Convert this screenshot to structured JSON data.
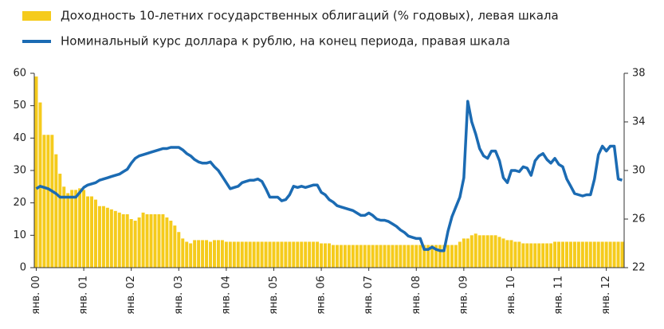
{
  "chart_data": {
    "type": "bar-line",
    "categories": [
      "янв. 00",
      null,
      null,
      null,
      null,
      null,
      null,
      null,
      null,
      null,
      null,
      null,
      "янв. 01",
      null,
      null,
      null,
      null,
      null,
      null,
      null,
      null,
      null,
      null,
      null,
      "янв. 02",
      null,
      null,
      null,
      null,
      null,
      null,
      null,
      null,
      null,
      null,
      null,
      "янв. 03",
      null,
      null,
      null,
      null,
      null,
      null,
      null,
      null,
      null,
      null,
      null,
      "янв. 04",
      null,
      null,
      null,
      null,
      null,
      null,
      null,
      null,
      null,
      null,
      null,
      "янв. 05",
      null,
      null,
      null,
      null,
      null,
      null,
      null,
      null,
      null,
      null,
      null,
      "янв. 06",
      null,
      null,
      null,
      null,
      null,
      null,
      null,
      null,
      null,
      null,
      null,
      "янв. 07",
      null,
      null,
      null,
      null,
      null,
      null,
      null,
      null,
      null,
      null,
      null,
      "янв. 08",
      null,
      null,
      null,
      null,
      null,
      null,
      null,
      null,
      null,
      null,
      null,
      "янв. 09",
      null,
      null,
      null,
      null,
      null,
      null,
      null,
      null,
      null,
      null,
      null,
      "янв. 10",
      null,
      null,
      null,
      null,
      null,
      null,
      null,
      null,
      null,
      null,
      null,
      "янв. 11",
      null,
      null,
      null,
      null,
      null,
      null,
      null,
      null,
      null,
      null,
      null,
      "янв. 12",
      null,
      null,
      null,
      null
    ],
    "series": [
      {
        "name": "Доходность 10-летних государственных облигаций (% годовых), левая шкала",
        "color": "#f5cb1c",
        "type": "bar",
        "axis": "y",
        "values": [
          59,
          51,
          41,
          41,
          41,
          35,
          29,
          25,
          23,
          24,
          24,
          24.5,
          24,
          22,
          22,
          21,
          19,
          19,
          18.5,
          18,
          17.5,
          17,
          16.5,
          16.5,
          15,
          14.5,
          15.5,
          17,
          16.5,
          16.5,
          16.5,
          16.5,
          16.5,
          15.5,
          14.5,
          13,
          11,
          9,
          8,
          7.5,
          8.5,
          8.5,
          8.5,
          8.5,
          8,
          8.5,
          8.5,
          8.5,
          8,
          8,
          8,
          8,
          8,
          8,
          8,
          8,
          8,
          8,
          8,
          8,
          8,
          8,
          8,
          8,
          8,
          8,
          8,
          8,
          8,
          8,
          8,
          8,
          7.5,
          7.5,
          7.5,
          7,
          7,
          7,
          7,
          7,
          7,
          7,
          7,
          7,
          7,
          7,
          7,
          7,
          7,
          7,
          7,
          7,
          7,
          7,
          7,
          7,
          7,
          7,
          7,
          7,
          7,
          7,
          7,
          7,
          7,
          7,
          7,
          8,
          9,
          9,
          10,
          10.5,
          10,
          10,
          10,
          10,
          10,
          9.5,
          9,
          8.5,
          8.5,
          8,
          8,
          7.5,
          7.5,
          7.5,
          7.5,
          7.5,
          7.5,
          7.5,
          7.5,
          8,
          8,
          8,
          8,
          8,
          8,
          8,
          8,
          8,
          8,
          8,
          8,
          8,
          8,
          8,
          8,
          8,
          8
        ]
      },
      {
        "name": "Номинальный курс доллара к рублю, на конец периода, правая шкала",
        "color": "#1b6bb3",
        "type": "line",
        "axis": "y2",
        "values": [
          28.5,
          28.7,
          28.6,
          28.5,
          28.3,
          28.1,
          27.8,
          27.8,
          27.8,
          27.8,
          27.8,
          28.2,
          28.6,
          28.8,
          28.9,
          29.0,
          29.2,
          29.3,
          29.4,
          29.5,
          29.6,
          29.7,
          29.9,
          30.1,
          30.6,
          31.0,
          31.2,
          31.3,
          31.4,
          31.5,
          31.6,
          31.7,
          31.8,
          31.8,
          31.9,
          31.9,
          31.9,
          31.7,
          31.4,
          31.2,
          30.9,
          30.7,
          30.6,
          30.6,
          30.7,
          30.3,
          30.0,
          29.5,
          29.0,
          28.5,
          28.6,
          28.7,
          29.0,
          29.1,
          29.2,
          29.2,
          29.3,
          29.1,
          28.5,
          27.8,
          27.8,
          27.8,
          27.5,
          27.6,
          28.0,
          28.7,
          28.6,
          28.7,
          28.6,
          28.7,
          28.8,
          28.8,
          28.2,
          28.0,
          27.6,
          27.4,
          27.1,
          27.0,
          26.9,
          26.8,
          26.7,
          26.5,
          26.3,
          26.3,
          26.5,
          26.3,
          26.0,
          25.9,
          25.9,
          25.8,
          25.6,
          25.4,
          25.1,
          24.9,
          24.6,
          24.5,
          24.4,
          24.4,
          23.5,
          23.5,
          23.7,
          23.5,
          23.4,
          23.4,
          25.0,
          26.2,
          27.0,
          27.8,
          29.4,
          35.7,
          34.0,
          33.0,
          31.8,
          31.2,
          31.0,
          31.6,
          31.6,
          30.8,
          29.4,
          29.0,
          30.0,
          30.0,
          29.9,
          30.3,
          30.2,
          29.6,
          30.8,
          31.2,
          31.4,
          30.9,
          30.6,
          31.0,
          30.5,
          30.3,
          29.3,
          28.7,
          28.1,
          28.0,
          27.9,
          28.0,
          28.0,
          29.3,
          31.3,
          32.0,
          31.6,
          32.0,
          32.0,
          29.3,
          29.2
        ]
      }
    ],
    "ylim": [
      0,
      60
    ],
    "yticks": [
      0,
      10,
      20,
      30,
      40,
      50,
      60
    ],
    "y2lim": [
      22,
      38
    ],
    "y2ticks": [
      22,
      26,
      30,
      34,
      38
    ]
  }
}
